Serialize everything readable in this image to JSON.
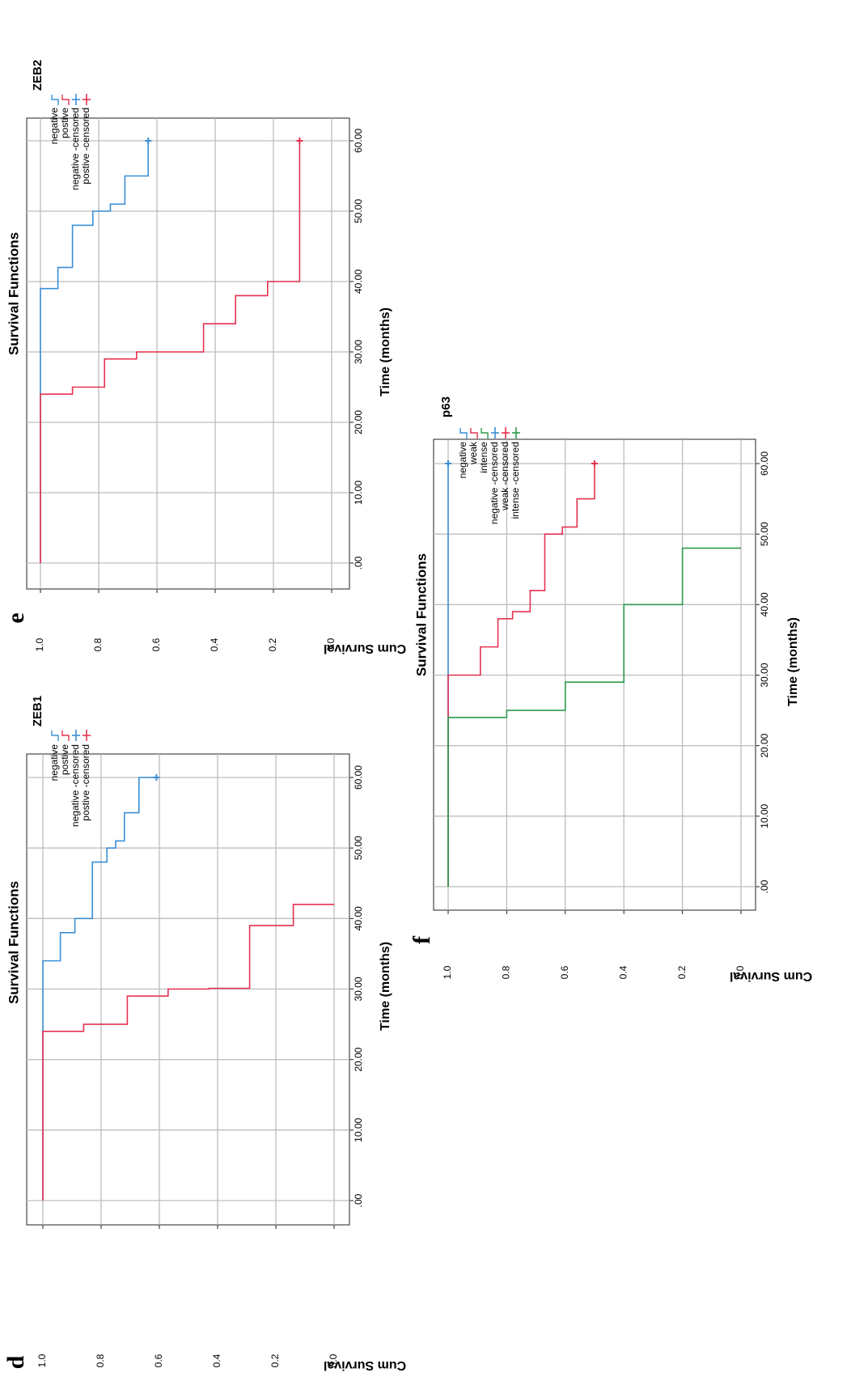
{
  "colors": {
    "negative": "#3b8fd6",
    "positive": "#e5324f",
    "intense": "#2e9a4e",
    "grid": "#bdbdbd",
    "frame": "#222222"
  },
  "chart_data": [
    {
      "panel": "d",
      "type": "line",
      "title": "Survival Functions",
      "xlabel": "Time (months)",
      "ylabel": "Cum Survival",
      "xlim": [
        0,
        60
      ],
      "ylim": [
        0,
        1
      ],
      "x_ticks": [
        ".00",
        "10.00",
        "20.00",
        "30.00",
        "40.00",
        "50.00",
        "60.00"
      ],
      "y_ticks": [
        "0.0",
        "0.2",
        "0.4",
        "0.6",
        "0.8",
        "1.0"
      ],
      "grid": true,
      "legend_title": "ZEB1",
      "legend": [
        "negative",
        "postive",
        "negative -censored",
        "postive -censored"
      ],
      "series": [
        {
          "name": "negative",
          "color": "#3b8fd6",
          "x": [
            0,
            34,
            38,
            40,
            48,
            50,
            51,
            55,
            60
          ],
          "y": [
            1.0,
            0.94,
            0.89,
            0.83,
            0.78,
            0.75,
            0.72,
            0.67,
            0.61
          ],
          "censored": [
            [
              60,
              0.61
            ]
          ]
        },
        {
          "name": "postive",
          "color": "#e5324f",
          "x": [
            0,
            24,
            25,
            29,
            30,
            30.1,
            39,
            42
          ],
          "y": [
            1.0,
            0.86,
            0.71,
            0.57,
            0.43,
            0.29,
            0.14,
            0.0
          ],
          "censored": []
        }
      ]
    },
    {
      "panel": "e",
      "type": "line",
      "title": "Survival Functions",
      "xlabel": "Time (months)",
      "ylabel": "Cum Survival",
      "xlim": [
        0,
        60
      ],
      "ylim": [
        0,
        1
      ],
      "x_ticks": [
        ".00",
        "10.00",
        "20.00",
        "30.00",
        "40.00",
        "50.00",
        "60.00"
      ],
      "y_ticks": [
        "0.0",
        "0.2",
        "0.4",
        "0.6",
        "0.8",
        "1.0"
      ],
      "grid": true,
      "legend_title": "ZEB2",
      "legend": [
        "negative",
        "postive",
        "negative -censored",
        "postive -censored"
      ],
      "series": [
        {
          "name": "negative",
          "color": "#3b8fd6",
          "x": [
            0,
            39,
            42,
            48,
            50,
            51,
            55,
            60
          ],
          "y": [
            1.0,
            0.94,
            0.89,
            0.82,
            0.76,
            0.71,
            0.63,
            0.63
          ],
          "censored": [
            [
              60,
              0.63
            ]
          ]
        },
        {
          "name": "postive",
          "color": "#e5324f",
          "x": [
            0,
            24,
            25,
            29,
            30,
            34,
            38,
            40,
            60
          ],
          "y": [
            1.0,
            0.89,
            0.78,
            0.67,
            0.44,
            0.33,
            0.22,
            0.11,
            0.11
          ],
          "censored": [
            [
              60,
              0.11
            ]
          ]
        }
      ]
    },
    {
      "panel": "f",
      "type": "line",
      "title": "Survival Functions",
      "xlabel": "Time (months)",
      "ylabel": "Cum Survival",
      "xlim": [
        0,
        60
      ],
      "ylim": [
        0,
        1
      ],
      "x_ticks": [
        ".00",
        "10.00",
        "20.00",
        "30.00",
        "40.00",
        "50.00",
        "60.00"
      ],
      "y_ticks": [
        "0.0",
        "0.2",
        "0.4",
        "0.6",
        "0.8",
        "1.0"
      ],
      "grid": true,
      "legend_title": "p63",
      "legend": [
        "negative",
        "weak",
        "intense",
        "negative -censored",
        "weak -censored",
        "intense -censored"
      ],
      "series": [
        {
          "name": "negative",
          "color": "#3b8fd6",
          "x": [
            0,
            60
          ],
          "y": [
            1.0,
            1.0
          ],
          "censored": [
            [
              60,
              1.0
            ]
          ]
        },
        {
          "name": "weak",
          "color": "#e5324f",
          "x": [
            0,
            30,
            34,
            38,
            39,
            42,
            50,
            51,
            55,
            60
          ],
          "y": [
            1.0,
            0.89,
            0.83,
            0.78,
            0.72,
            0.67,
            0.61,
            0.56,
            0.5,
            0.5
          ],
          "censored": [
            [
              60,
              0.5
            ]
          ]
        },
        {
          "name": "intense",
          "color": "#2e9a4e",
          "x": [
            0,
            24,
            25,
            29,
            40,
            48
          ],
          "y": [
            1.0,
            0.8,
            0.6,
            0.4,
            0.2,
            0.0
          ],
          "censored": []
        }
      ]
    }
  ]
}
